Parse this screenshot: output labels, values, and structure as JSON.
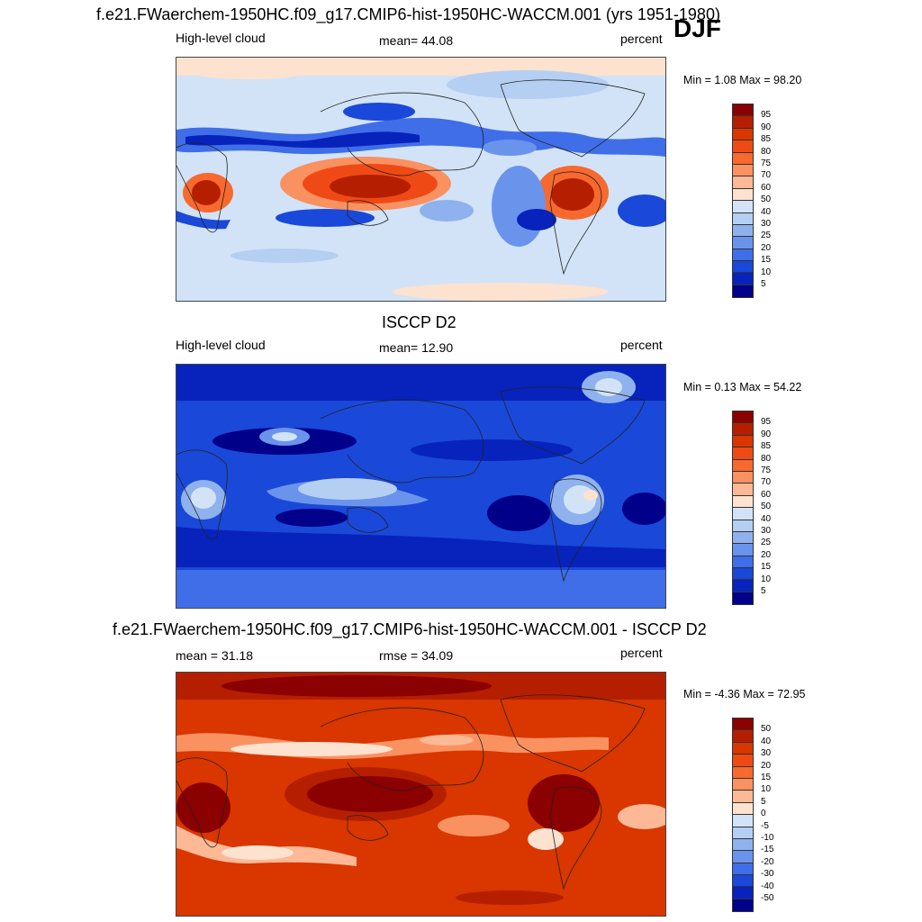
{
  "season": "DJF",
  "panels": [
    {
      "title": "f.e21.FWaerchem-1950HC.f09_g17.CMIP6-hist-1950HC-WACCM.001 (yrs 1951-1980)",
      "left": "High-level cloud",
      "center": "mean=  44.08",
      "right": "percent",
      "minmax": "Min =   1.08 Max =  98.20",
      "levels": [
        "95",
        "90",
        "85",
        "80",
        "75",
        "70",
        "60",
        "50",
        "40",
        "30",
        "25",
        "20",
        "15",
        "10",
        "5"
      ],
      "colors": [
        "#8b0000",
        "#b51f00",
        "#d93600",
        "#ef4a15",
        "#f7692e",
        "#fa9161",
        "#fdb896",
        "#fde2cf",
        "#d2e3f7",
        "#b5cff3",
        "#8fb2ee",
        "#6a93ec",
        "#3f6ee8",
        "#1a48d8",
        "#0723bc",
        "#00008b"
      ]
    },
    {
      "title": "ISCCP D2",
      "left": "High-level cloud",
      "center": "mean=  12.90",
      "right": "percent",
      "minmax": "Min =   0.13 Max =  54.22",
      "levels": [
        "95",
        "90",
        "85",
        "80",
        "75",
        "70",
        "60",
        "50",
        "40",
        "30",
        "25",
        "20",
        "15",
        "10",
        "5"
      ],
      "colors": [
        "#8b0000",
        "#b51f00",
        "#d93600",
        "#ef4a15",
        "#f7692e",
        "#fa9161",
        "#fdb896",
        "#fde2cf",
        "#d2e3f7",
        "#b5cff3",
        "#8fb2ee",
        "#6a93ec",
        "#3f6ee8",
        "#1a48d8",
        "#0723bc",
        "#00008b"
      ]
    },
    {
      "title": "f.e21.FWaerchem-1950HC.f09_g17.CMIP6-hist-1950HC-WACCM.001 - ISCCP D2",
      "left": "mean =  31.18",
      "center": "rmse =  34.09",
      "right": "percent",
      "minmax": "Min =  -4.36 Max =  72.95",
      "levels": [
        "50",
        "40",
        "30",
        "20",
        "15",
        "10",
        "5",
        "0",
        "-5",
        "-10",
        "-15",
        "-20",
        "-30",
        "-40",
        "-50"
      ],
      "colors": [
        "#8b0000",
        "#b51f00",
        "#d93600",
        "#ef4a15",
        "#f7692e",
        "#fa9161",
        "#fdb896",
        "#fde2cf",
        "#d2e3f7",
        "#b5cff3",
        "#8fb2ee",
        "#6a93ec",
        "#3f6ee8",
        "#1a48d8",
        "#0723bc",
        "#00008b"
      ]
    }
  ]
}
